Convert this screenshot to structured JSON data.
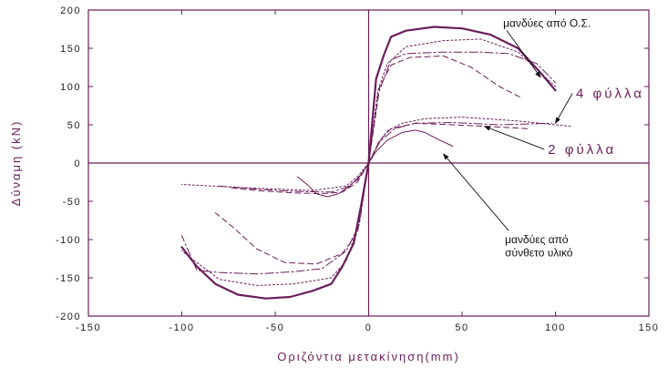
{
  "chart_data": {
    "type": "line",
    "title": "",
    "xlabel": "Οριζόντια μετακίνηση(mm)",
    "ylabel": "Δύναμη (kN)",
    "xlim": [
      -150,
      150
    ],
    "ylim": [
      -200,
      200
    ],
    "xticks": [
      -150,
      -100,
      -50,
      0,
      50,
      100,
      150
    ],
    "yticks": [
      -200,
      -150,
      -100,
      -50,
      0,
      50,
      100,
      150,
      200
    ],
    "xtick_labels": [
      "-150",
      "-100",
      "-50",
      "0",
      "50",
      "100",
      "150"
    ],
    "ytick_labels": [
      "-200",
      "-150",
      "-100",
      "-50",
      "0",
      "50",
      "100",
      "150",
      "200"
    ],
    "grid": false,
    "color": "#6b1e5a",
    "annotations": [
      {
        "text": "μανδύες από Ο.Σ.",
        "style": "normal",
        "x": 72,
        "y": 178,
        "arrow_to": [
          92,
          112
        ]
      },
      {
        "text": "4 φύλλα",
        "style": "big",
        "x": 111,
        "y": 85,
        "arrow_to": [
          100,
          52
        ]
      },
      {
        "text": "2 φύλλα",
        "style": "big",
        "x": 96,
        "y": 12,
        "arrow_to": [
          62,
          48
        ]
      },
      {
        "text": "μανδύες από",
        "style": "normal",
        "x": 73,
        "y": -105,
        "arrow_to": [
          40,
          12
        ]
      },
      {
        "text": "σύνθετο υλικό",
        "style": "normal",
        "x": 73,
        "y": -122
      }
    ],
    "series": [
      {
        "dash": "solid",
        "width": 2.2,
        "points": [
          [
            0,
            0
          ],
          [
            4,
            110
          ],
          [
            8,
            140
          ],
          [
            12,
            165
          ],
          [
            20,
            173
          ],
          [
            35,
            178
          ],
          [
            50,
            176
          ],
          [
            65,
            168
          ],
          [
            80,
            150
          ],
          [
            92,
            118
          ],
          [
            100,
            95
          ]
        ]
      },
      {
        "dash": "2,2.5",
        "width": 1,
        "points": [
          [
            0,
            0
          ],
          [
            5,
            95
          ],
          [
            10,
            130
          ],
          [
            20,
            152
          ],
          [
            40,
            160
          ],
          [
            60,
            162
          ],
          [
            80,
            145
          ],
          [
            100,
            100
          ]
        ]
      },
      {
        "dash": "9,3,2,3",
        "width": 1,
        "points": [
          [
            0,
            0
          ],
          [
            5,
            90
          ],
          [
            12,
            135
          ],
          [
            20,
            143
          ],
          [
            40,
            145
          ],
          [
            60,
            145
          ],
          [
            75,
            143
          ],
          [
            90,
            130
          ],
          [
            100,
            105
          ]
        ]
      },
      {
        "dash": "6,4",
        "width": 1,
        "points": [
          [
            0,
            0
          ],
          [
            6,
            100
          ],
          [
            12,
            128
          ],
          [
            22,
            138
          ],
          [
            40,
            140
          ],
          [
            55,
            125
          ],
          [
            70,
            100
          ],
          [
            82,
            85
          ]
        ]
      },
      {
        "dash": "solid",
        "width": 2.2,
        "points": [
          [
            0,
            0
          ],
          [
            -4,
            -55
          ],
          [
            -8,
            -105
          ],
          [
            -14,
            -135
          ],
          [
            -20,
            -158
          ],
          [
            -30,
            -167
          ],
          [
            -42,
            -175
          ],
          [
            -55,
            -177
          ],
          [
            -70,
            -172
          ],
          [
            -82,
            -158
          ],
          [
            -92,
            -135
          ],
          [
            -100,
            -110
          ]
        ]
      },
      {
        "dash": "2,2.5",
        "width": 1,
        "points": [
          [
            0,
            0
          ],
          [
            -6,
            -85
          ],
          [
            -12,
            -128
          ],
          [
            -20,
            -150
          ],
          [
            -40,
            -158
          ],
          [
            -60,
            -160
          ],
          [
            -80,
            -152
          ],
          [
            -100,
            -115
          ]
        ]
      },
      {
        "dash": "9,3,2,3",
        "width": 1,
        "points": [
          [
            0,
            0
          ],
          [
            -5,
            -80
          ],
          [
            -12,
            -115
          ],
          [
            -25,
            -138
          ],
          [
            -40,
            -142
          ],
          [
            -60,
            -145
          ],
          [
            -80,
            -143
          ],
          [
            -92,
            -140
          ],
          [
            -100,
            -95
          ]
        ]
      },
      {
        "dash": "6,4",
        "width": 1,
        "points": [
          [
            0,
            0
          ],
          [
            -6,
            -92
          ],
          [
            -14,
            -118
          ],
          [
            -28,
            -132
          ],
          [
            -45,
            -130
          ],
          [
            -60,
            -112
          ],
          [
            -72,
            -85
          ],
          [
            -82,
            -65
          ]
        ]
      },
      {
        "dash": "solid",
        "width": 1,
        "points": [
          [
            0,
            0
          ],
          [
            4,
            15
          ],
          [
            10,
            30
          ],
          [
            18,
            40
          ],
          [
            25,
            43
          ],
          [
            30,
            40
          ],
          [
            38,
            30
          ],
          [
            45,
            22
          ]
        ]
      },
      {
        "dash": "2,2.5",
        "width": 1,
        "points": [
          [
            0,
            0
          ],
          [
            5,
            25
          ],
          [
            10,
            42
          ],
          [
            18,
            52
          ],
          [
            30,
            58
          ],
          [
            50,
            60
          ],
          [
            80,
            55
          ],
          [
            108,
            48
          ]
        ]
      },
      {
        "dash": "9,3,2,3",
        "width": 1,
        "points": [
          [
            0,
            0
          ],
          [
            6,
            28
          ],
          [
            14,
            45
          ],
          [
            25,
            52
          ],
          [
            45,
            53
          ],
          [
            70,
            50
          ],
          [
            98,
            52
          ]
        ]
      },
      {
        "dash": "6,4",
        "width": 1,
        "points": [
          [
            0,
            0
          ],
          [
            6,
            30
          ],
          [
            12,
            45
          ],
          [
            25,
            52
          ],
          [
            45,
            50
          ],
          [
            70,
            47
          ],
          [
            85,
            45
          ]
        ]
      },
      {
        "dash": "solid",
        "width": 1,
        "points": [
          [
            0,
            0
          ],
          [
            -4,
            -15
          ],
          [
            -10,
            -30
          ],
          [
            -16,
            -40
          ],
          [
            -22,
            -44
          ],
          [
            -28,
            -40
          ],
          [
            -32,
            -30
          ],
          [
            -38,
            -18
          ]
        ]
      },
      {
        "dash": "2,2.5",
        "width": 1,
        "points": [
          [
            0,
            0
          ],
          [
            -6,
            -18
          ],
          [
            -12,
            -30
          ],
          [
            -30,
            -36
          ],
          [
            -60,
            -33
          ],
          [
            -100,
            -28
          ]
        ]
      },
      {
        "dash": "9,3,2,3",
        "width": 1,
        "points": [
          [
            0,
            0
          ],
          [
            -6,
            -22
          ],
          [
            -12,
            -32
          ],
          [
            -20,
            -38
          ],
          [
            -40,
            -37
          ],
          [
            -60,
            -34
          ],
          [
            -80,
            -30
          ]
        ]
      },
      {
        "dash": "6,4",
        "width": 1,
        "points": [
          [
            0,
            0
          ],
          [
            -6,
            -25
          ],
          [
            -14,
            -38
          ],
          [
            -25,
            -40
          ],
          [
            -40,
            -39
          ],
          [
            -60,
            -36
          ],
          [
            -75,
            -32
          ]
        ]
      }
    ]
  }
}
